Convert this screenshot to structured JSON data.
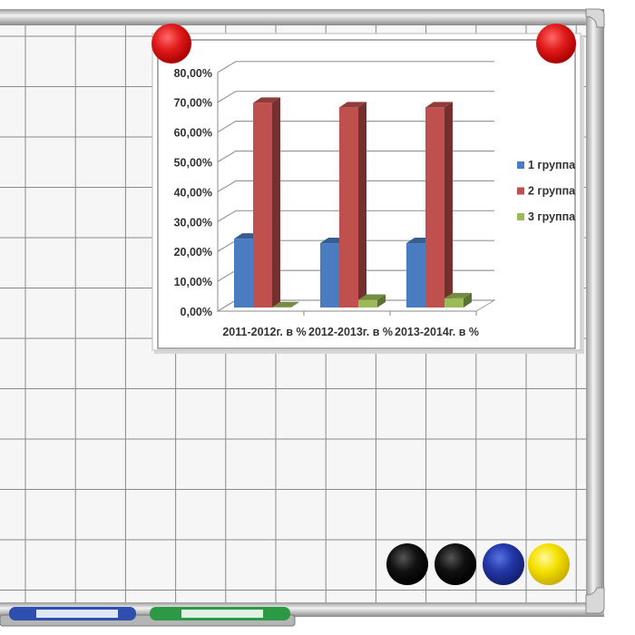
{
  "chart_data": {
    "type": "bar",
    "three_d": true,
    "categories": [
      "2011-2012г. в %",
      "2012-2013г. в %",
      "2013-2014г. в %"
    ],
    "series": [
      {
        "name": "1 группа",
        "values": [
          25.5,
          24,
          24
        ],
        "color": "#4a7cc1"
      },
      {
        "name": "2 группа",
        "values": [
          71,
          69.5,
          69.5
        ],
        "color": "#c0504d"
      },
      {
        "name": "3 группа",
        "values": [
          2.5,
          5,
          5.5
        ],
        "color": "#9bbb59"
      }
    ],
    "yticks": [
      "0,00%",
      "10,00%",
      "20,00%",
      "30,00%",
      "40,00%",
      "50,00%",
      "60,00%",
      "70,00%",
      "80,00%"
    ],
    "ylim": [
      0,
      80
    ],
    "grid": true,
    "legend_position": "right"
  },
  "board": {
    "magnet_colors": [
      "#e01b1b",
      "#e01b1b",
      "#111111",
      "#111111",
      "#2338a8",
      "#f5e000"
    ],
    "marker_colors": [
      "#2f4fb0",
      "#2c9a45"
    ]
  }
}
